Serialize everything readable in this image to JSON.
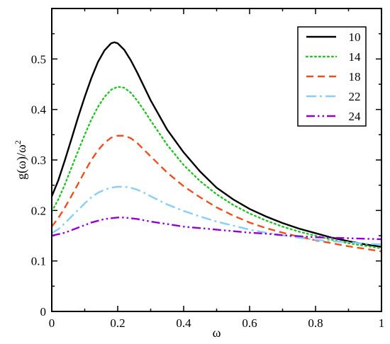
{
  "chart_data": {
    "type": "line",
    "title": "",
    "xlabel": "ω",
    "ylabel_main": "g(ω)/ω",
    "ylabel_superscript": "2",
    "xlim": [
      0,
      1
    ],
    "ylim": [
      0,
      0.6
    ],
    "xticks": [
      "0",
      "0.2",
      "0.4",
      "0.6",
      "0.8",
      "1"
    ],
    "yticks": [
      "0",
      "0.1",
      "0.2",
      "0.3",
      "0.4",
      "0.5"
    ],
    "legend_position": "top-right",
    "series": [
      {
        "name": "10",
        "color": "#000000",
        "dash": "solid",
        "points": [
          [
            0.0,
            0.228
          ],
          [
            0.02,
            0.26
          ],
          [
            0.04,
            0.3
          ],
          [
            0.06,
            0.342
          ],
          [
            0.08,
            0.385
          ],
          [
            0.1,
            0.425
          ],
          [
            0.12,
            0.462
          ],
          [
            0.14,
            0.494
          ],
          [
            0.16,
            0.517
          ],
          [
            0.18,
            0.531
          ],
          [
            0.19,
            0.533
          ],
          [
            0.2,
            0.531
          ],
          [
            0.22,
            0.518
          ],
          [
            0.24,
            0.497
          ],
          [
            0.26,
            0.472
          ],
          [
            0.28,
            0.445
          ],
          [
            0.3,
            0.418
          ],
          [
            0.35,
            0.36
          ],
          [
            0.4,
            0.315
          ],
          [
            0.45,
            0.277
          ],
          [
            0.5,
            0.245
          ],
          [
            0.55,
            0.222
          ],
          [
            0.6,
            0.203
          ],
          [
            0.65,
            0.188
          ],
          [
            0.7,
            0.175
          ],
          [
            0.75,
            0.164
          ],
          [
            0.8,
            0.155
          ],
          [
            0.85,
            0.146
          ],
          [
            0.9,
            0.139
          ],
          [
            0.95,
            0.133
          ],
          [
            1.0,
            0.128
          ]
        ]
      },
      {
        "name": "14",
        "color": "#22c322",
        "dash": "dotted",
        "points": [
          [
            0.0,
            0.198
          ],
          [
            0.02,
            0.222
          ],
          [
            0.04,
            0.252
          ],
          [
            0.06,
            0.285
          ],
          [
            0.08,
            0.318
          ],
          [
            0.1,
            0.35
          ],
          [
            0.12,
            0.38
          ],
          [
            0.14,
            0.405
          ],
          [
            0.16,
            0.425
          ],
          [
            0.18,
            0.439
          ],
          [
            0.2,
            0.445
          ],
          [
            0.22,
            0.443
          ],
          [
            0.24,
            0.433
          ],
          [
            0.26,
            0.417
          ],
          [
            0.28,
            0.398
          ],
          [
            0.3,
            0.378
          ],
          [
            0.35,
            0.33
          ],
          [
            0.4,
            0.29
          ],
          [
            0.45,
            0.258
          ],
          [
            0.5,
            0.232
          ],
          [
            0.55,
            0.211
          ],
          [
            0.6,
            0.194
          ],
          [
            0.65,
            0.18
          ],
          [
            0.7,
            0.168
          ],
          [
            0.75,
            0.158
          ],
          [
            0.8,
            0.15
          ],
          [
            0.85,
            0.142
          ],
          [
            0.9,
            0.135
          ],
          [
            0.95,
            0.13
          ],
          [
            1.0,
            0.125
          ]
        ]
      },
      {
        "name": "18",
        "color": "#f04e1e",
        "dash": "dashed",
        "points": [
          [
            0.0,
            0.168
          ],
          [
            0.02,
            0.185
          ],
          [
            0.04,
            0.206
          ],
          [
            0.06,
            0.229
          ],
          [
            0.08,
            0.253
          ],
          [
            0.1,
            0.277
          ],
          [
            0.12,
            0.3
          ],
          [
            0.14,
            0.319
          ],
          [
            0.16,
            0.334
          ],
          [
            0.18,
            0.344
          ],
          [
            0.2,
            0.348
          ],
          [
            0.22,
            0.348
          ],
          [
            0.24,
            0.343
          ],
          [
            0.26,
            0.333
          ],
          [
            0.28,
            0.32
          ],
          [
            0.3,
            0.307
          ],
          [
            0.35,
            0.275
          ],
          [
            0.4,
            0.248
          ],
          [
            0.45,
            0.226
          ],
          [
            0.5,
            0.206
          ],
          [
            0.55,
            0.19
          ],
          [
            0.6,
            0.176
          ],
          [
            0.65,
            0.165
          ],
          [
            0.7,
            0.156
          ],
          [
            0.75,
            0.148
          ],
          [
            0.8,
            0.141
          ],
          [
            0.85,
            0.135
          ],
          [
            0.9,
            0.129
          ],
          [
            0.95,
            0.124
          ],
          [
            1.0,
            0.119
          ]
        ]
      },
      {
        "name": "22",
        "color": "#87cefa",
        "dash": "dashdot",
        "points": [
          [
            0.0,
            0.155
          ],
          [
            0.02,
            0.163
          ],
          [
            0.04,
            0.175
          ],
          [
            0.06,
            0.188
          ],
          [
            0.08,
            0.201
          ],
          [
            0.1,
            0.214
          ],
          [
            0.12,
            0.226
          ],
          [
            0.14,
            0.235
          ],
          [
            0.16,
            0.241
          ],
          [
            0.18,
            0.245
          ],
          [
            0.2,
            0.247
          ],
          [
            0.22,
            0.247
          ],
          [
            0.24,
            0.245
          ],
          [
            0.26,
            0.241
          ],
          [
            0.28,
            0.235
          ],
          [
            0.3,
            0.228
          ],
          [
            0.35,
            0.212
          ],
          [
            0.4,
            0.199
          ],
          [
            0.45,
            0.188
          ],
          [
            0.5,
            0.178
          ],
          [
            0.55,
            0.17
          ],
          [
            0.6,
            0.162
          ],
          [
            0.65,
            0.156
          ],
          [
            0.7,
            0.151
          ],
          [
            0.75,
            0.146
          ],
          [
            0.8,
            0.142
          ],
          [
            0.85,
            0.139
          ],
          [
            0.9,
            0.137
          ],
          [
            0.95,
            0.134
          ],
          [
            1.0,
            0.133
          ]
        ]
      },
      {
        "name": "24",
        "color": "#9400d3",
        "dash": "dashdotdot",
        "points": [
          [
            0.0,
            0.15
          ],
          [
            0.04,
            0.156
          ],
          [
            0.08,
            0.166
          ],
          [
            0.12,
            0.176
          ],
          [
            0.16,
            0.183
          ],
          [
            0.2,
            0.186
          ],
          [
            0.22,
            0.186
          ],
          [
            0.26,
            0.183
          ],
          [
            0.3,
            0.178
          ],
          [
            0.35,
            0.173
          ],
          [
            0.4,
            0.168
          ],
          [
            0.45,
            0.165
          ],
          [
            0.5,
            0.162
          ],
          [
            0.55,
            0.159
          ],
          [
            0.6,
            0.156
          ],
          [
            0.65,
            0.154
          ],
          [
            0.7,
            0.151
          ],
          [
            0.75,
            0.149
          ],
          [
            0.8,
            0.147
          ],
          [
            0.85,
            0.146
          ],
          [
            0.9,
            0.145
          ],
          [
            0.95,
            0.144
          ],
          [
            1.0,
            0.143
          ]
        ]
      }
    ]
  }
}
